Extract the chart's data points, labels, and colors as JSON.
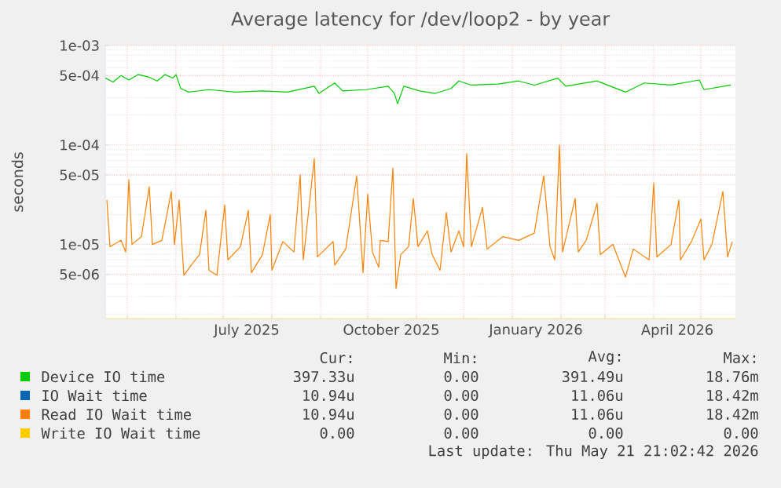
{
  "chart_data": {
    "type": "line",
    "title": "Average latency for /dev/loop2 - by year",
    "ylabel": "seconds",
    "log": "y",
    "grid": true,
    "legend": "bottom",
    "xlim": [
      "2025-04-17",
      "2026-05-23"
    ],
    "xticks": [
      {
        "value": "2025-05-01",
        "label": null
      },
      {
        "value": "2025-06-01",
        "label": null
      },
      {
        "value": "2025-07-01",
        "label": null
      },
      {
        "value": "2025-08-01",
        "label": null
      },
      {
        "value": "2025-09-01",
        "label": null
      },
      {
        "value": "2025-10-01",
        "label": null
      },
      {
        "value": "2025-11-01",
        "label": null
      },
      {
        "value": "2025-12-01",
        "label": null
      },
      {
        "value": "2026-01-01",
        "label": null
      },
      {
        "value": "2026-02-01",
        "label": null
      },
      {
        "value": "2026-03-01",
        "label": null
      },
      {
        "value": "2026-04-01",
        "label": null
      },
      {
        "value": "2026-05-01",
        "label": null
      },
      {
        "value": "2025-07-16",
        "label": "July 2025"
      },
      {
        "value": "2025-10-16",
        "label": "October 2025"
      },
      {
        "value": "2026-01-16",
        "label": "January 2026"
      },
      {
        "value": "2026-04-16",
        "label": "April 2026"
      }
    ],
    "ylim": [
      1.8e-06,
      0.001
    ],
    "yticks": [
      {
        "value": 0.001,
        "label": "1e-03"
      },
      {
        "value": 0.0005,
        "label": "5e-04"
      },
      {
        "value": 0.0001,
        "label": "1e-04"
      },
      {
        "value": 5e-05,
        "label": "5e-05"
      },
      {
        "value": 1e-05,
        "label": "1e-05"
      },
      {
        "value": 5e-06,
        "label": "5e-06"
      }
    ],
    "series": [
      {
        "name": "Device IO time",
        "color": "#00cc00",
        "x": [
          "2025-04-17",
          "2025-04-22",
          "2025-04-27",
          "2025-05-02",
          "2025-05-08",
          "2025-05-15",
          "2025-05-20",
          "2025-05-25",
          "2025-05-30",
          "2025-06-01",
          "2025-06-04",
          "2025-06-09",
          "2025-06-22",
          "2025-07-09",
          "2025-07-26",
          "2025-08-11",
          "2025-08-28",
          "2025-08-31",
          "2025-09-10",
          "2025-09-15",
          "2025-09-30",
          "2025-10-14",
          "2025-10-18",
          "2025-10-20",
          "2025-10-24",
          "2025-11-03",
          "2025-11-13",
          "2025-11-23",
          "2025-11-28",
          "2025-12-06",
          "2025-12-23",
          "2026-01-05",
          "2026-01-15",
          "2026-01-30",
          "2026-02-04",
          "2026-02-24",
          "2026-03-14",
          "2026-03-26",
          "2026-04-12",
          "2026-04-30",
          "2026-05-03",
          "2026-05-20"
        ],
        "values": [
          0.00047,
          0.00043,
          0.0005,
          0.00045,
          0.00051,
          0.00048,
          0.00044,
          0.00051,
          0.00047,
          0.00051,
          0.00037,
          0.00034,
          0.00036,
          0.00034,
          0.00035,
          0.00034,
          0.00039,
          0.00033,
          0.00042,
          0.00035,
          0.00036,
          0.00039,
          0.00033,
          0.00026,
          0.00039,
          0.00035,
          0.00033,
          0.00037,
          0.00044,
          0.0004,
          0.00041,
          0.00044,
          0.0004,
          0.00047,
          0.00039,
          0.00044,
          0.00034,
          0.00042,
          0.0004,
          0.00045,
          0.00036,
          0.0004
        ]
      },
      {
        "name": "IO Wait time",
        "color": "#0066b3"
      },
      {
        "name": "Read IO Wait time",
        "color": "#ff8000",
        "x": [
          "2025-04-18",
          "2025-04-20",
          "2025-04-27",
          "2025-04-30",
          "2025-05-02",
          "2025-05-04",
          "2025-05-10",
          "2025-05-15",
          "2025-05-17",
          "2025-05-23",
          "2025-05-29",
          "2025-05-31",
          "2025-06-03",
          "2025-06-06",
          "2025-06-12",
          "2025-06-16",
          "2025-06-20",
          "2025-06-22",
          "2025-06-27",
          "2025-07-02",
          "2025-07-04",
          "2025-07-12",
          "2025-07-17",
          "2025-07-19",
          "2025-07-26",
          "2025-07-31",
          "2025-08-01",
          "2025-08-08",
          "2025-08-15",
          "2025-08-19",
          "2025-08-21",
          "2025-08-28",
          "2025-08-30",
          "2025-09-09",
          "2025-09-10",
          "2025-09-17",
          "2025-09-24",
          "2025-09-28",
          "2025-10-01",
          "2025-10-04",
          "2025-10-08",
          "2025-10-09",
          "2025-10-14",
          "2025-10-17",
          "2025-10-19",
          "2025-10-22",
          "2025-10-27",
          "2025-10-30",
          "2025-11-02",
          "2025-11-08",
          "2025-11-11",
          "2025-11-16",
          "2025-11-20",
          "2025-11-23",
          "2025-11-28",
          "2025-12-01",
          "2025-12-03",
          "2025-12-06",
          "2025-12-13",
          "2025-12-16",
          "2025-12-26",
          "2026-01-05",
          "2026-01-15",
          "2026-01-21",
          "2026-01-25",
          "2026-01-28",
          "2026-01-31",
          "2026-02-02",
          "2026-02-10",
          "2026-02-12",
          "2026-02-17",
          "2026-02-24",
          "2026-02-26",
          "2026-03-06",
          "2026-03-14",
          "2026-03-19",
          "2026-03-29",
          "2026-04-01",
          "2026-04-03",
          "2026-04-12",
          "2026-04-17",
          "2026-04-18",
          "2026-04-25",
          "2026-05-01",
          "2026-05-03",
          "2026-05-08",
          "2026-05-15",
          "2026-05-18",
          "2026-05-21"
        ],
        "values": [
          2.8e-05,
          9.5e-06,
          1.1e-05,
          8.4e-06,
          4.5e-05,
          1e-05,
          1.2e-05,
          3.8e-05,
          1e-05,
          1.1e-05,
          3.4e-05,
          1e-05,
          2.8e-05,
          4.9e-06,
          6.6e-06,
          7.9e-06,
          2.2e-05,
          5.5e-06,
          4.9e-06,
          2.5e-05,
          7e-06,
          9.5e-06,
          2.2e-05,
          5.2e-06,
          7.9e-06,
          2e-05,
          5.5e-06,
          1.07e-05,
          8.4e-06,
          5e-05,
          7e-06,
          7.3e-05,
          7.5e-06,
          1.07e-05,
          6.2e-06,
          9e-06,
          4.9e-05,
          5.2e-06,
          3.2e-05,
          8.4e-06,
          5.9e-06,
          1.1e-05,
          1.07e-05,
          5.85e-05,
          3.6e-06,
          7.9e-06,
          9.5e-06,
          2.9e-05,
          9.5e-06,
          1.37e-05,
          7.9e-06,
          5.5e-06,
          2.1e-05,
          8.4e-06,
          1.37e-05,
          9.5e-06,
          8.2e-05,
          9.5e-06,
          2.36e-05,
          9e-06,
          1.2e-05,
          1.1e-05,
          1.3e-05,
          4.9e-05,
          9.5e-06,
          7e-06,
          0.0001,
          8.4e-06,
          2.9e-05,
          8.4e-06,
          1.1e-05,
          2.6e-05,
          7.9e-06,
          1e-05,
          4.7e-06,
          9e-06,
          7e-06,
          4.1e-05,
          7.5e-06,
          1e-05,
          2.8e-05,
          7e-06,
          1.07e-05,
          1.8e-05,
          7e-06,
          1e-05,
          3.4e-05,
          7.5e-06,
          1.07e-05
        ]
      },
      {
        "name": "Write IO Wait time",
        "color": "#ffcc00"
      }
    ],
    "annotations": [
      "Cur:",
      "Min:",
      "Avg:",
      "Max:",
      "397.33u",
      "0.00",
      "391.49u",
      "18.76m",
      "10.94u",
      "0.00",
      "11.06u",
      "18.42m",
      "10.94u",
      "0.00",
      "11.06u",
      "18.42m",
      "0.00",
      "0.00",
      "0.00",
      "0.00",
      "Last update: Thu May 21 21:02:42 2026"
    ]
  }
}
